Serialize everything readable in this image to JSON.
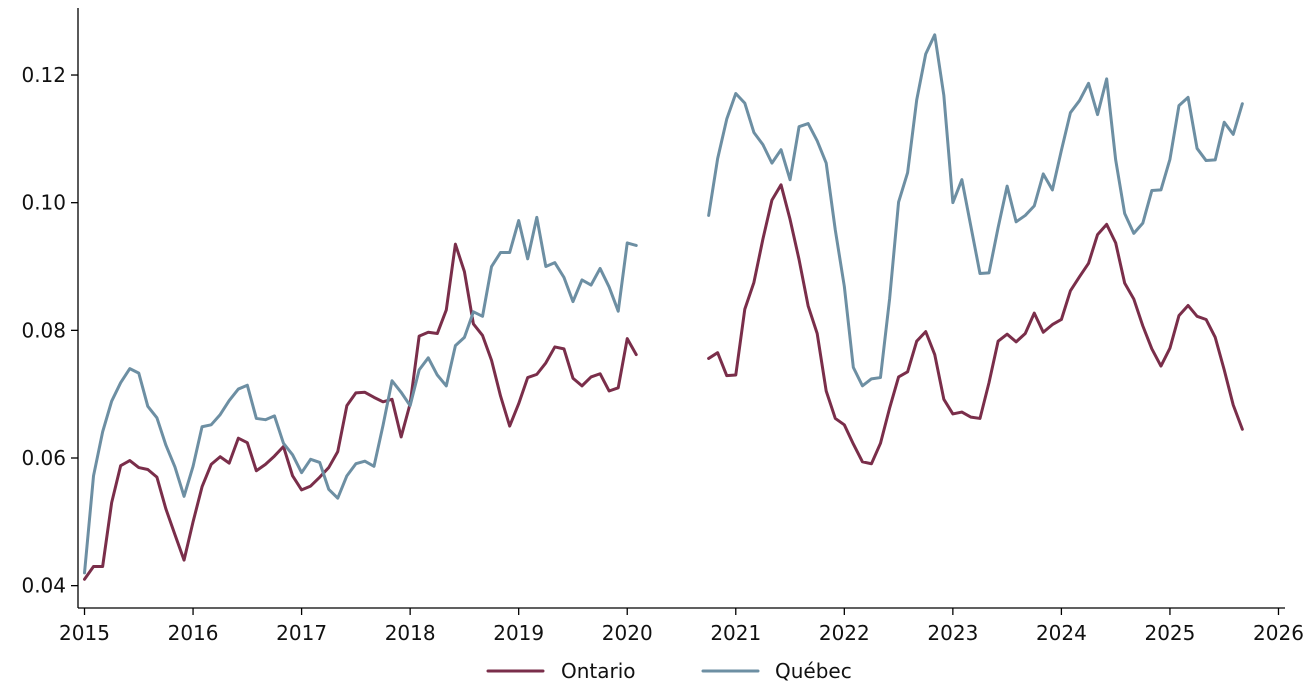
{
  "chart_data": {
    "type": "line",
    "title": "",
    "xlabel": "",
    "ylabel": "",
    "xlim": [
      2014.94,
      2026.06
    ],
    "ylim": [
      0.0365,
      0.1305
    ],
    "x_ticks": [
      "2015",
      "2016",
      "2017",
      "2018",
      "2019",
      "2020",
      "2021",
      "2022",
      "2023",
      "2024",
      "2025",
      "2026"
    ],
    "y_ticks": [
      "0.04",
      "0.06",
      "0.08",
      "0.10",
      "0.12"
    ],
    "grid": false,
    "legend_position": "bottom-center",
    "series": [
      {
        "name": "Ontario",
        "color": "#7a2e4a",
        "segments": [
          [
            [
              2015.0,
              0.041
            ],
            [
              2015.083,
              0.043
            ],
            [
              2015.167,
              0.043
            ],
            [
              2015.25,
              0.053
            ],
            [
              2015.333,
              0.0588
            ],
            [
              2015.417,
              0.0596
            ],
            [
              2015.5,
              0.0585
            ],
            [
              2015.583,
              0.0582
            ],
            [
              2015.667,
              0.057
            ],
            [
              2015.75,
              0.052
            ],
            [
              2015.833,
              0.048
            ],
            [
              2015.917,
              0.044
            ],
            [
              2016.0,
              0.05
            ],
            [
              2016.083,
              0.0555
            ],
            [
              2016.167,
              0.059
            ],
            [
              2016.25,
              0.0602
            ],
            [
              2016.333,
              0.0592
            ],
            [
              2016.417,
              0.0631
            ],
            [
              2016.5,
              0.0624
            ],
            [
              2016.583,
              0.058
            ],
            [
              2016.667,
              0.059
            ],
            [
              2016.75,
              0.0603
            ],
            [
              2016.833,
              0.0618
            ],
            [
              2016.917,
              0.0572
            ],
            [
              2017.0,
              0.055
            ],
            [
              2017.083,
              0.0556
            ],
            [
              2017.167,
              0.057
            ],
            [
              2017.25,
              0.0585
            ],
            [
              2017.333,
              0.061
            ],
            [
              2017.417,
              0.0682
            ],
            [
              2017.5,
              0.0702
            ],
            [
              2017.583,
              0.0703
            ],
            [
              2017.667,
              0.0695
            ],
            [
              2017.75,
              0.0688
            ],
            [
              2017.833,
              0.0692
            ],
            [
              2017.917,
              0.0633
            ],
            [
              2018.0,
              0.0685
            ],
            [
              2018.083,
              0.0791
            ],
            [
              2018.167,
              0.0797
            ],
            [
              2018.25,
              0.0795
            ],
            [
              2018.333,
              0.0832
            ],
            [
              2018.417,
              0.0935
            ],
            [
              2018.5,
              0.0892
            ],
            [
              2018.583,
              0.081
            ],
            [
              2018.667,
              0.0792
            ],
            [
              2018.75,
              0.0753
            ],
            [
              2018.833,
              0.0697
            ],
            [
              2018.917,
              0.065
            ],
            [
              2019.0,
              0.0685
            ],
            [
              2019.083,
              0.0726
            ],
            [
              2019.167,
              0.0731
            ],
            [
              2019.25,
              0.0749
            ],
            [
              2019.333,
              0.0774
            ],
            [
              2019.417,
              0.0771
            ],
            [
              2019.5,
              0.0725
            ],
            [
              2019.583,
              0.0713
            ],
            [
              2019.667,
              0.0727
            ],
            [
              2019.75,
              0.0732
            ],
            [
              2019.833,
              0.0705
            ],
            [
              2019.917,
              0.071
            ],
            [
              2020.0,
              0.0787
            ],
            [
              2020.083,
              0.0762
            ]
          ],
          [
            [
              2020.75,
              0.0756
            ],
            [
              2020.833,
              0.0765
            ],
            [
              2020.917,
              0.0729
            ],
            [
              2021.0,
              0.073
            ],
            [
              2021.083,
              0.0833
            ],
            [
              2021.167,
              0.0875
            ],
            [
              2021.25,
              0.0943
            ],
            [
              2021.333,
              0.1004
            ],
            [
              2021.417,
              0.1028
            ],
            [
              2021.5,
              0.0974
            ],
            [
              2021.583,
              0.0911
            ],
            [
              2021.667,
              0.0838
            ],
            [
              2021.75,
              0.0795
            ],
            [
              2021.833,
              0.0705
            ],
            [
              2021.917,
              0.0662
            ],
            [
              2022.0,
              0.0652
            ],
            [
              2022.083,
              0.0622
            ],
            [
              2022.167,
              0.0594
            ],
            [
              2022.25,
              0.0591
            ],
            [
              2022.333,
              0.0623
            ],
            [
              2022.417,
              0.0678
            ],
            [
              2022.5,
              0.0727
            ],
            [
              2022.583,
              0.0735
            ],
            [
              2022.667,
              0.0783
            ],
            [
              2022.75,
              0.0798
            ],
            [
              2022.833,
              0.0762
            ],
            [
              2022.917,
              0.0692
            ],
            [
              2023.0,
              0.0669
            ],
            [
              2023.083,
              0.0672
            ],
            [
              2023.167,
              0.0664
            ],
            [
              2023.25,
              0.0662
            ],
            [
              2023.333,
              0.0718
            ],
            [
              2023.417,
              0.0783
            ],
            [
              2023.5,
              0.0794
            ],
            [
              2023.583,
              0.0782
            ],
            [
              2023.667,
              0.0795
            ],
            [
              2023.75,
              0.0827
            ],
            [
              2023.833,
              0.0797
            ],
            [
              2023.917,
              0.0809
            ],
            [
              2024.0,
              0.0817
            ],
            [
              2024.083,
              0.0862
            ],
            [
              2024.167,
              0.0884
            ],
            [
              2024.25,
              0.0905
            ],
            [
              2024.333,
              0.095
            ],
            [
              2024.417,
              0.0966
            ],
            [
              2024.5,
              0.0937
            ],
            [
              2024.583,
              0.0874
            ],
            [
              2024.667,
              0.0849
            ],
            [
              2024.75,
              0.0807
            ],
            [
              2024.833,
              0.0771
            ],
            [
              2024.917,
              0.0744
            ],
            [
              2025.0,
              0.0772
            ],
            [
              2025.083,
              0.0823
            ],
            [
              2025.167,
              0.0839
            ],
            [
              2025.25,
              0.0822
            ],
            [
              2025.333,
              0.0817
            ],
            [
              2025.417,
              0.0789
            ],
            [
              2025.5,
              0.0738
            ],
            [
              2025.583,
              0.0683
            ],
            [
              2025.667,
              0.0645
            ]
          ]
        ]
      },
      {
        "name": "Québec",
        "color": "#6d8fa3",
        "segments": [
          [
            [
              2015.0,
              0.042
            ],
            [
              2015.083,
              0.0572
            ],
            [
              2015.167,
              0.0641
            ],
            [
              2015.25,
              0.0689
            ],
            [
              2015.333,
              0.0718
            ],
            [
              2015.417,
              0.074
            ],
            [
              2015.5,
              0.0733
            ],
            [
              2015.583,
              0.0681
            ],
            [
              2015.667,
              0.0663
            ],
            [
              2015.75,
              0.062
            ],
            [
              2015.833,
              0.0586
            ],
            [
              2015.917,
              0.054
            ],
            [
              2016.0,
              0.0587
            ],
            [
              2016.083,
              0.0649
            ],
            [
              2016.167,
              0.0652
            ],
            [
              2016.25,
              0.0668
            ],
            [
              2016.333,
              0.069
            ],
            [
              2016.417,
              0.0708
            ],
            [
              2016.5,
              0.0714
            ],
            [
              2016.583,
              0.0662
            ],
            [
              2016.667,
              0.066
            ],
            [
              2016.75,
              0.0666
            ],
            [
              2016.833,
              0.0623
            ],
            [
              2016.917,
              0.0605
            ],
            [
              2017.0,
              0.0577
            ],
            [
              2017.083,
              0.0598
            ],
            [
              2017.167,
              0.0593
            ],
            [
              2017.25,
              0.0551
            ],
            [
              2017.333,
              0.0537
            ],
            [
              2017.417,
              0.0572
            ],
            [
              2017.5,
              0.0591
            ],
            [
              2017.583,
              0.0595
            ],
            [
              2017.667,
              0.0587
            ],
            [
              2017.75,
              0.0651
            ],
            [
              2017.833,
              0.0721
            ],
            [
              2017.917,
              0.0703
            ],
            [
              2018.0,
              0.0682
            ],
            [
              2018.083,
              0.0738
            ],
            [
              2018.167,
              0.0757
            ],
            [
              2018.25,
              0.073
            ],
            [
              2018.333,
              0.0713
            ],
            [
              2018.417,
              0.0776
            ],
            [
              2018.5,
              0.0789
            ],
            [
              2018.583,
              0.0829
            ],
            [
              2018.667,
              0.0822
            ],
            [
              2018.75,
              0.09
            ],
            [
              2018.833,
              0.0922
            ],
            [
              2018.917,
              0.0922
            ],
            [
              2019.0,
              0.0972
            ],
            [
              2019.083,
              0.0912
            ],
            [
              2019.167,
              0.0977
            ],
            [
              2019.25,
              0.09
            ],
            [
              2019.333,
              0.0906
            ],
            [
              2019.417,
              0.0883
            ],
            [
              2019.5,
              0.0845
            ],
            [
              2019.583,
              0.0879
            ],
            [
              2019.667,
              0.0871
            ],
            [
              2019.75,
              0.0897
            ],
            [
              2019.833,
              0.0868
            ],
            [
              2019.917,
              0.083
            ],
            [
              2020.0,
              0.0937
            ],
            [
              2020.083,
              0.0933
            ]
          ],
          [
            [
              2020.75,
              0.098
            ],
            [
              2020.833,
              0.1069
            ],
            [
              2020.917,
              0.1131
            ],
            [
              2021.0,
              0.1171
            ],
            [
              2021.083,
              0.1156
            ],
            [
              2021.167,
              0.111
            ],
            [
              2021.25,
              0.1091
            ],
            [
              2021.333,
              0.1062
            ],
            [
              2021.417,
              0.1083
            ],
            [
              2021.5,
              0.1036
            ],
            [
              2021.583,
              0.1119
            ],
            [
              2021.667,
              0.1124
            ],
            [
              2021.75,
              0.1097
            ],
            [
              2021.833,
              0.1062
            ],
            [
              2021.917,
              0.0957
            ],
            [
              2022.0,
              0.0869
            ],
            [
              2022.083,
              0.0742
            ],
            [
              2022.167,
              0.0713
            ],
            [
              2022.25,
              0.0724
            ],
            [
              2022.333,
              0.0726
            ],
            [
              2022.417,
              0.0849
            ],
            [
              2022.5,
              0.1001
            ],
            [
              2022.583,
              0.1047
            ],
            [
              2022.667,
              0.1161
            ],
            [
              2022.75,
              0.1233
            ],
            [
              2022.833,
              0.1263
            ],
            [
              2022.917,
              0.1168
            ],
            [
              2023.0,
              0.1
            ],
            [
              2023.083,
              0.1036
            ],
            [
              2023.167,
              0.0962
            ],
            [
              2023.25,
              0.0889
            ],
            [
              2023.333,
              0.089
            ],
            [
              2023.417,
              0.0961
            ],
            [
              2023.5,
              0.1026
            ],
            [
              2023.583,
              0.097
            ],
            [
              2023.667,
              0.098
            ],
            [
              2023.75,
              0.0995
            ],
            [
              2023.833,
              0.1045
            ],
            [
              2023.917,
              0.102
            ],
            [
              2024.0,
              0.1082
            ],
            [
              2024.083,
              0.1141
            ],
            [
              2024.167,
              0.116
            ],
            [
              2024.25,
              0.1187
            ],
            [
              2024.333,
              0.1138
            ],
            [
              2024.417,
              0.1194
            ],
            [
              2024.5,
              0.1067
            ],
            [
              2024.583,
              0.0983
            ],
            [
              2024.667,
              0.0952
            ],
            [
              2024.75,
              0.0968
            ],
            [
              2024.833,
              0.1019
            ],
            [
              2024.917,
              0.102
            ],
            [
              2025.0,
              0.1068
            ],
            [
              2025.083,
              0.1152
            ],
            [
              2025.167,
              0.1165
            ],
            [
              2025.25,
              0.1085
            ],
            [
              2025.333,
              0.1066
            ],
            [
              2025.417,
              0.1067
            ],
            [
              2025.5,
              0.1126
            ],
            [
              2025.583,
              0.1107
            ],
            [
              2025.667,
              0.1155
            ]
          ]
        ]
      }
    ]
  }
}
